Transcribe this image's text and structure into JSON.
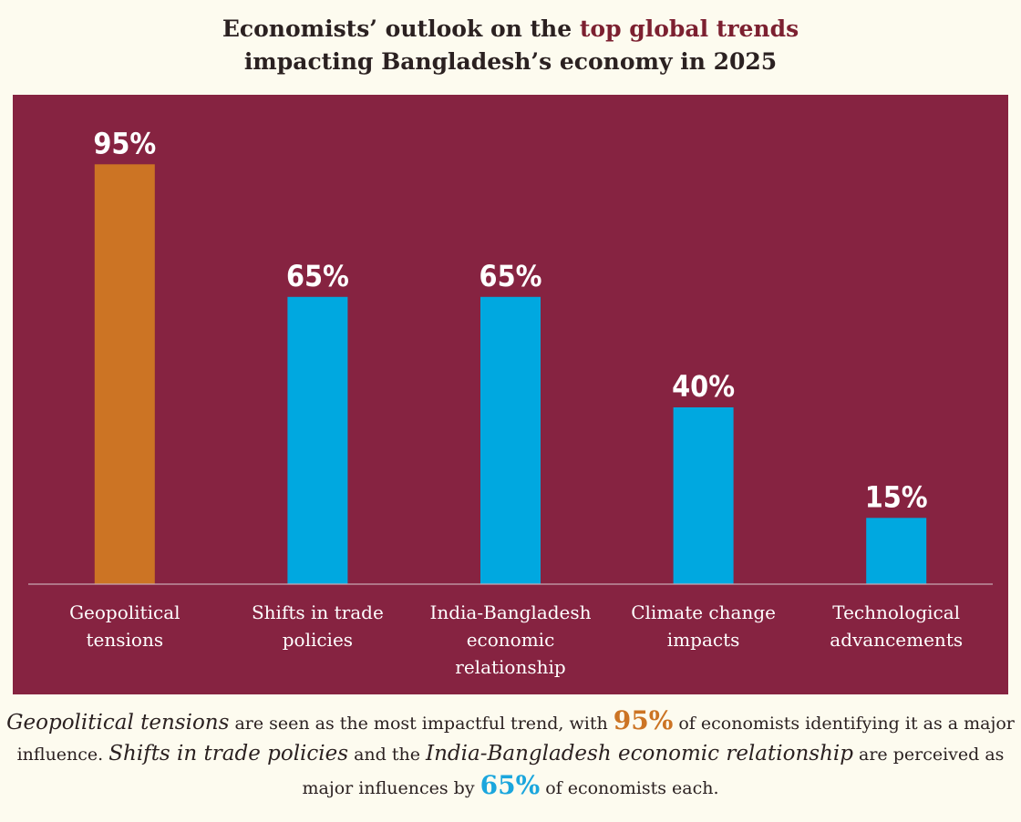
{
  "title": {
    "line1_prefix": "Economists’ outlook on the ",
    "line1_highlight": "top global trends",
    "line2": "impacting Bangladesh’s economy in 2025"
  },
  "colors": {
    "panel": "#862341",
    "highlight_bar": "#cc7424",
    "bar": "#00a8e0",
    "axis": "#c9a9b4",
    "value_label": "#ffffff",
    "category_label": "#ffffff"
  },
  "chart_data": {
    "type": "bar",
    "title": "Economists’ outlook on the top global trends impacting Bangladesh’s economy in 2025",
    "categories": [
      [
        "Geopolitical",
        "tensions"
      ],
      [
        "Shifts in trade",
        "policies"
      ],
      [
        "India-Bangladesh",
        "economic",
        "relationship"
      ],
      [
        "Climate change",
        "impacts"
      ],
      [
        "Technological",
        "advancements"
      ]
    ],
    "values": [
      95,
      65,
      65,
      40,
      15
    ],
    "value_labels": [
      "95%",
      "65%",
      "65%",
      "40%",
      "15%"
    ],
    "highlight_index": 0,
    "ylim": [
      0,
      100
    ],
    "xlabel": "",
    "ylabel": "",
    "grid": false
  },
  "caption": {
    "t1": "Geopolitical tensions",
    "t2": " are seen as the most impactful trend, with ",
    "t3": "95%",
    "t4": " of economists identifying it as a major influence. ",
    "t5": "Shifts in trade policies",
    "t6": " and the ",
    "t7": "India-Bangladesh economic relationship",
    "t8": " are perceived as major influences by ",
    "t9": "65%",
    "t10": " of economists each."
  }
}
